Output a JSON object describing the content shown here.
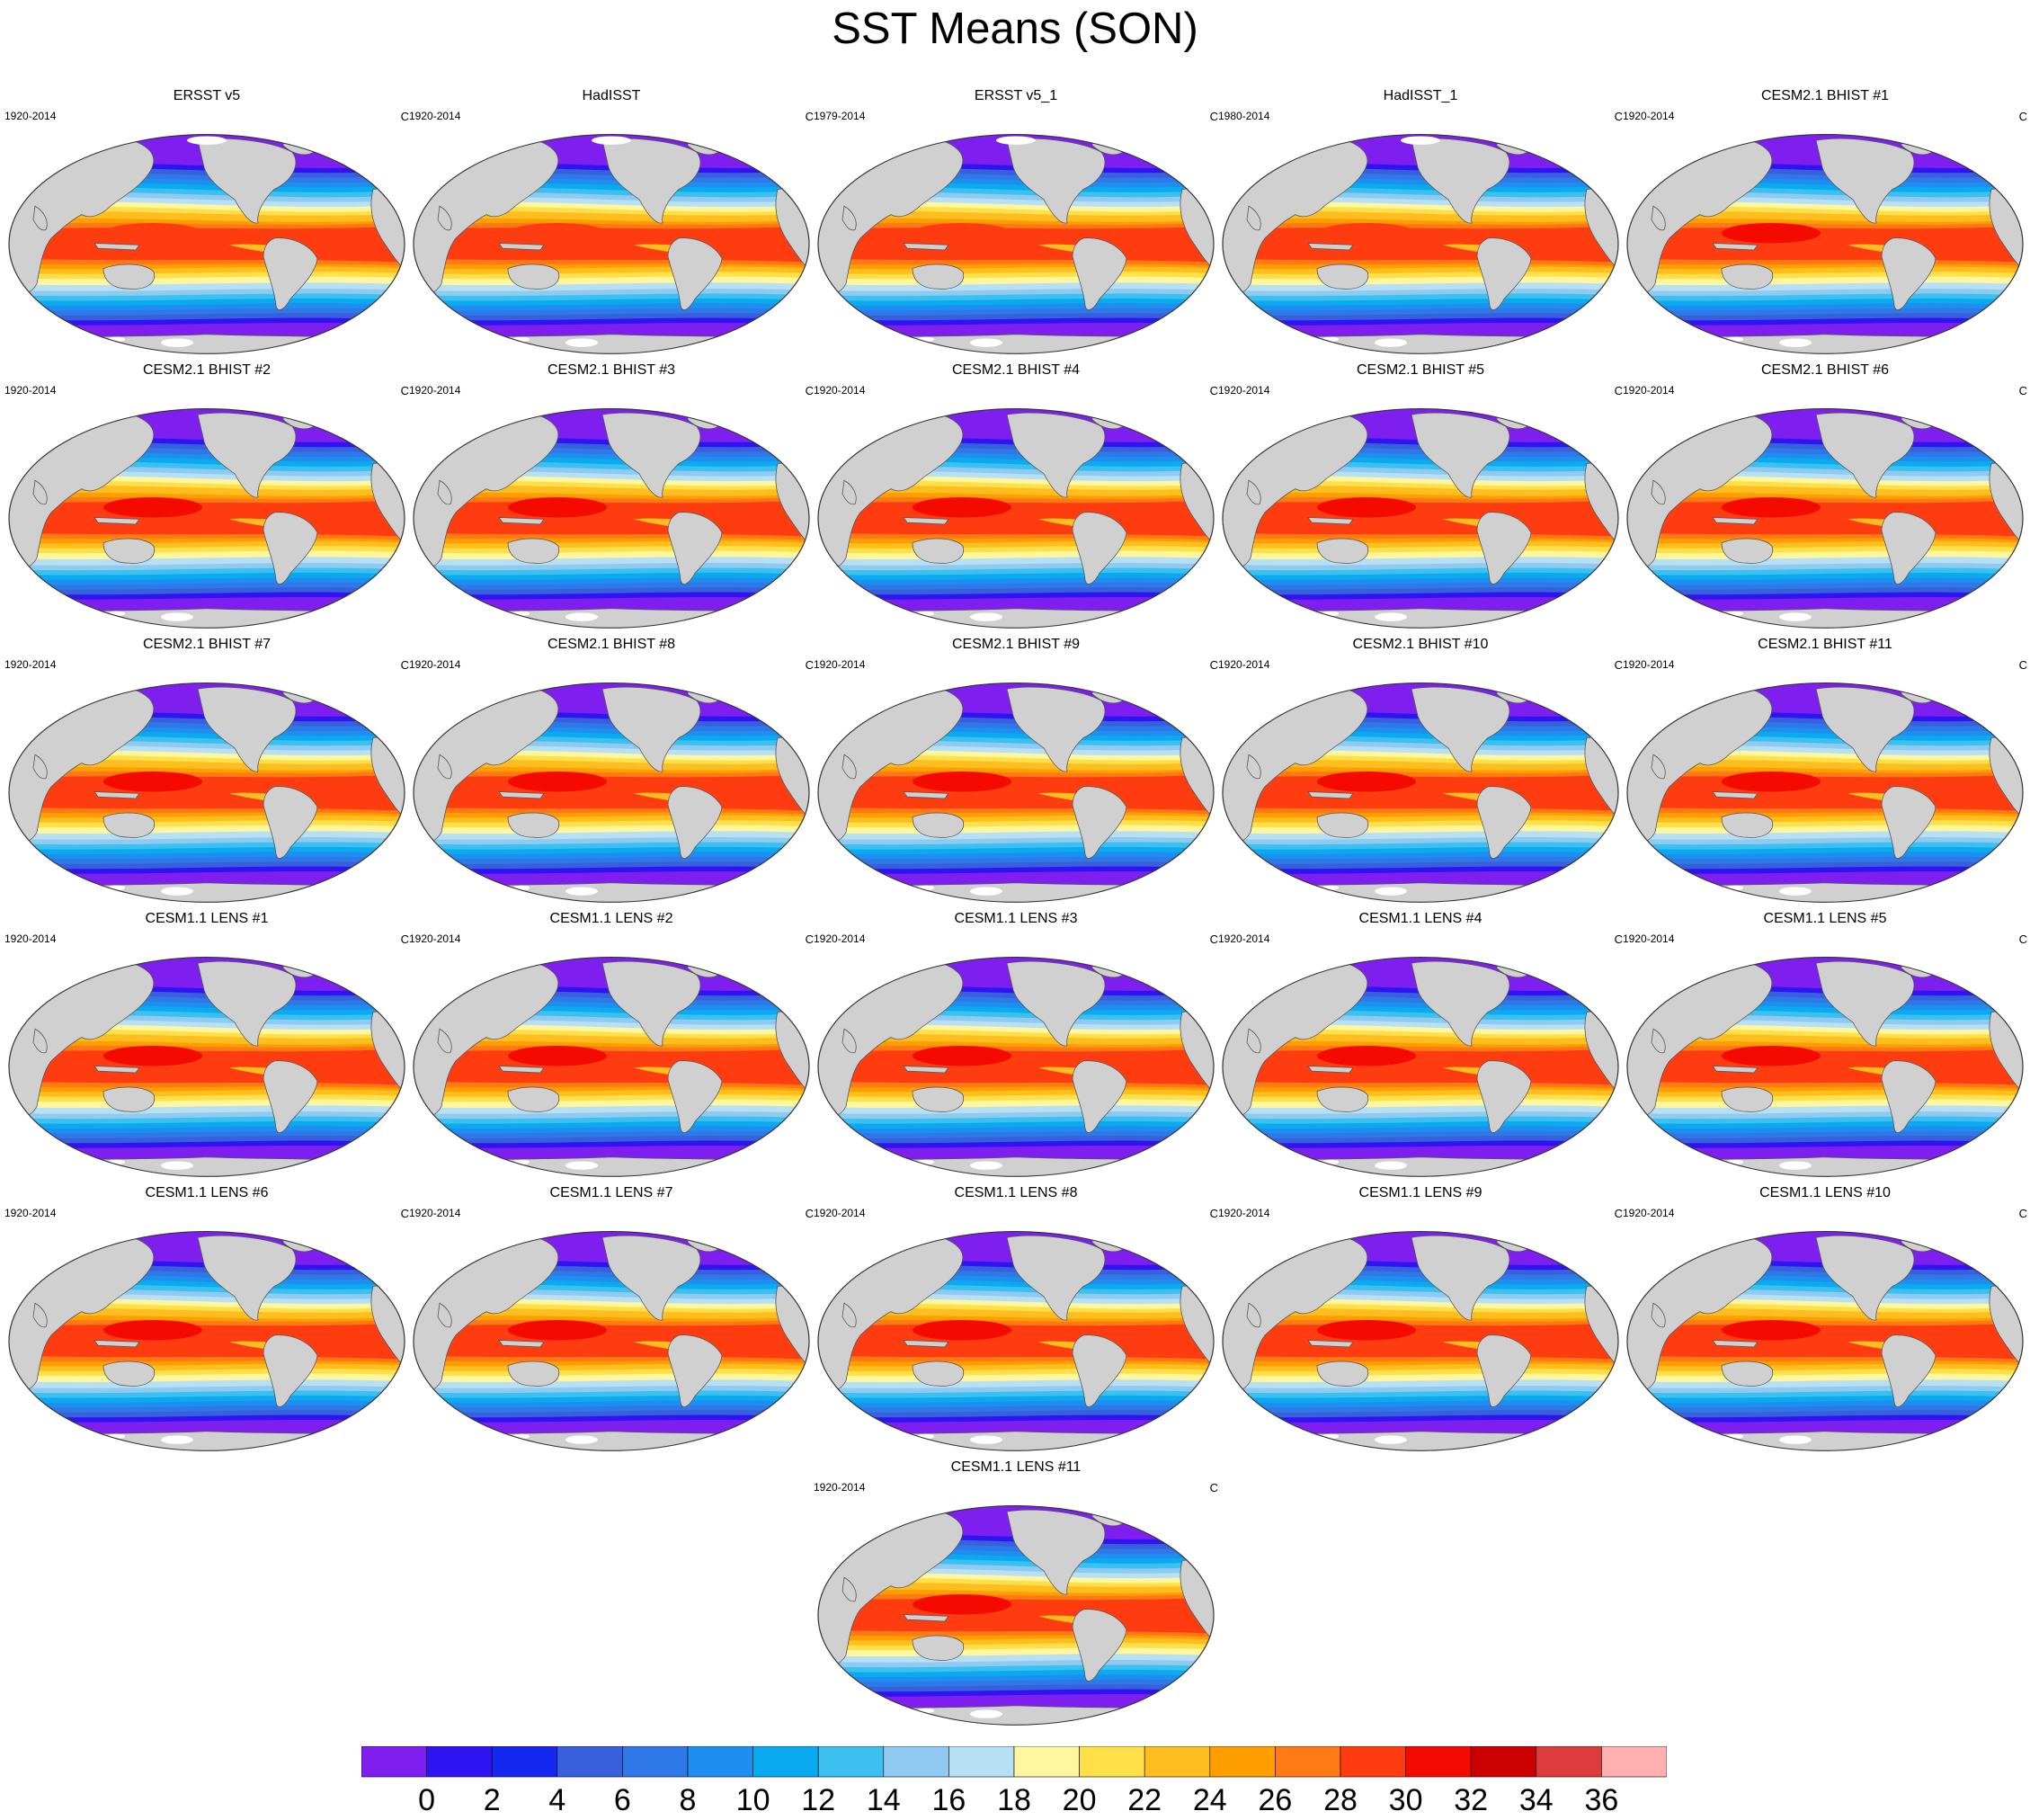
{
  "title": "SST Means (SON)",
  "units": "C",
  "panels": [
    {
      "name": "ERSST v5",
      "period": "1920-2014",
      "type": "obs"
    },
    {
      "name": "HadISST",
      "period": "1920-2014",
      "type": "obs"
    },
    {
      "name": "ERSST v5_1",
      "period": "1979-2014",
      "type": "obs"
    },
    {
      "name": "HadISST_1",
      "period": "1980-2014",
      "type": "obs"
    },
    {
      "name": "CESM2.1 BHIST #1",
      "period": "1920-2014",
      "type": "cesm2"
    },
    {
      "name": "CESM2.1 BHIST #2",
      "period": "1920-2014",
      "type": "cesm2"
    },
    {
      "name": "CESM2.1 BHIST #3",
      "period": "1920-2014",
      "type": "cesm2"
    },
    {
      "name": "CESM2.1 BHIST #4",
      "period": "1920-2014",
      "type": "cesm2"
    },
    {
      "name": "CESM2.1 BHIST #5",
      "period": "1920-2014",
      "type": "cesm2"
    },
    {
      "name": "CESM2.1 BHIST #6",
      "period": "1920-2014",
      "type": "cesm2"
    },
    {
      "name": "CESM2.1 BHIST #7",
      "period": "1920-2014",
      "type": "cesm2"
    },
    {
      "name": "CESM2.1 BHIST #8",
      "period": "1920-2014",
      "type": "cesm2"
    },
    {
      "name": "CESM2.1 BHIST #9",
      "period": "1920-2014",
      "type": "cesm2"
    },
    {
      "name": "CESM2.1 BHIST #10",
      "period": "1920-2014",
      "type": "cesm2"
    },
    {
      "name": "CESM2.1 BHIST #11",
      "period": "1920-2014",
      "type": "cesm2"
    },
    {
      "name": "CESM1.1 LENS #1",
      "period": "1920-2014",
      "type": "cesm1"
    },
    {
      "name": "CESM1.1 LENS #2",
      "period": "1920-2014",
      "type": "cesm1"
    },
    {
      "name": "CESM1.1 LENS #3",
      "period": "1920-2014",
      "type": "cesm1"
    },
    {
      "name": "CESM1.1 LENS #4",
      "period": "1920-2014",
      "type": "cesm1"
    },
    {
      "name": "CESM1.1 LENS #5",
      "period": "1920-2014",
      "type": "cesm1"
    },
    {
      "name": "CESM1.1 LENS #6",
      "period": "1920-2014",
      "type": "cesm1"
    },
    {
      "name": "CESM1.1 LENS #7",
      "period": "1920-2014",
      "type": "cesm1"
    },
    {
      "name": "CESM1.1 LENS #8",
      "period": "1920-2014",
      "type": "cesm1"
    },
    {
      "name": "CESM1.1 LENS #9",
      "period": "1920-2014",
      "type": "cesm1"
    },
    {
      "name": "CESM1.1 LENS #10",
      "period": "1920-2014",
      "type": "cesm1"
    },
    {
      "name": "CESM1.1 LENS #11",
      "period": "1920-2014",
      "type": "cesm1"
    }
  ],
  "colorbar": {
    "levels": [
      0,
      2,
      4,
      6,
      8,
      10,
      12,
      14,
      16,
      18,
      20,
      22,
      24,
      26,
      28,
      30,
      32,
      34,
      36
    ],
    "colors": [
      "#7e1ff0",
      "#2e14f0",
      "#1428f0",
      "#3860dc",
      "#2e78e8",
      "#1e8ef0",
      "#0aaaf0",
      "#3cc0f0",
      "#90caf0",
      "#b8e0f4",
      "#fff6a0",
      "#ffe048",
      "#ffbe20",
      "#ff9e00",
      "#ff7a14",
      "#ff3c10",
      "#f50a00",
      "#cc0000",
      "#dc3c3c",
      "#ffb0b0"
    ]
  },
  "land_color": "#d0d0d0",
  "sea_ice_color": "#ffffff"
}
